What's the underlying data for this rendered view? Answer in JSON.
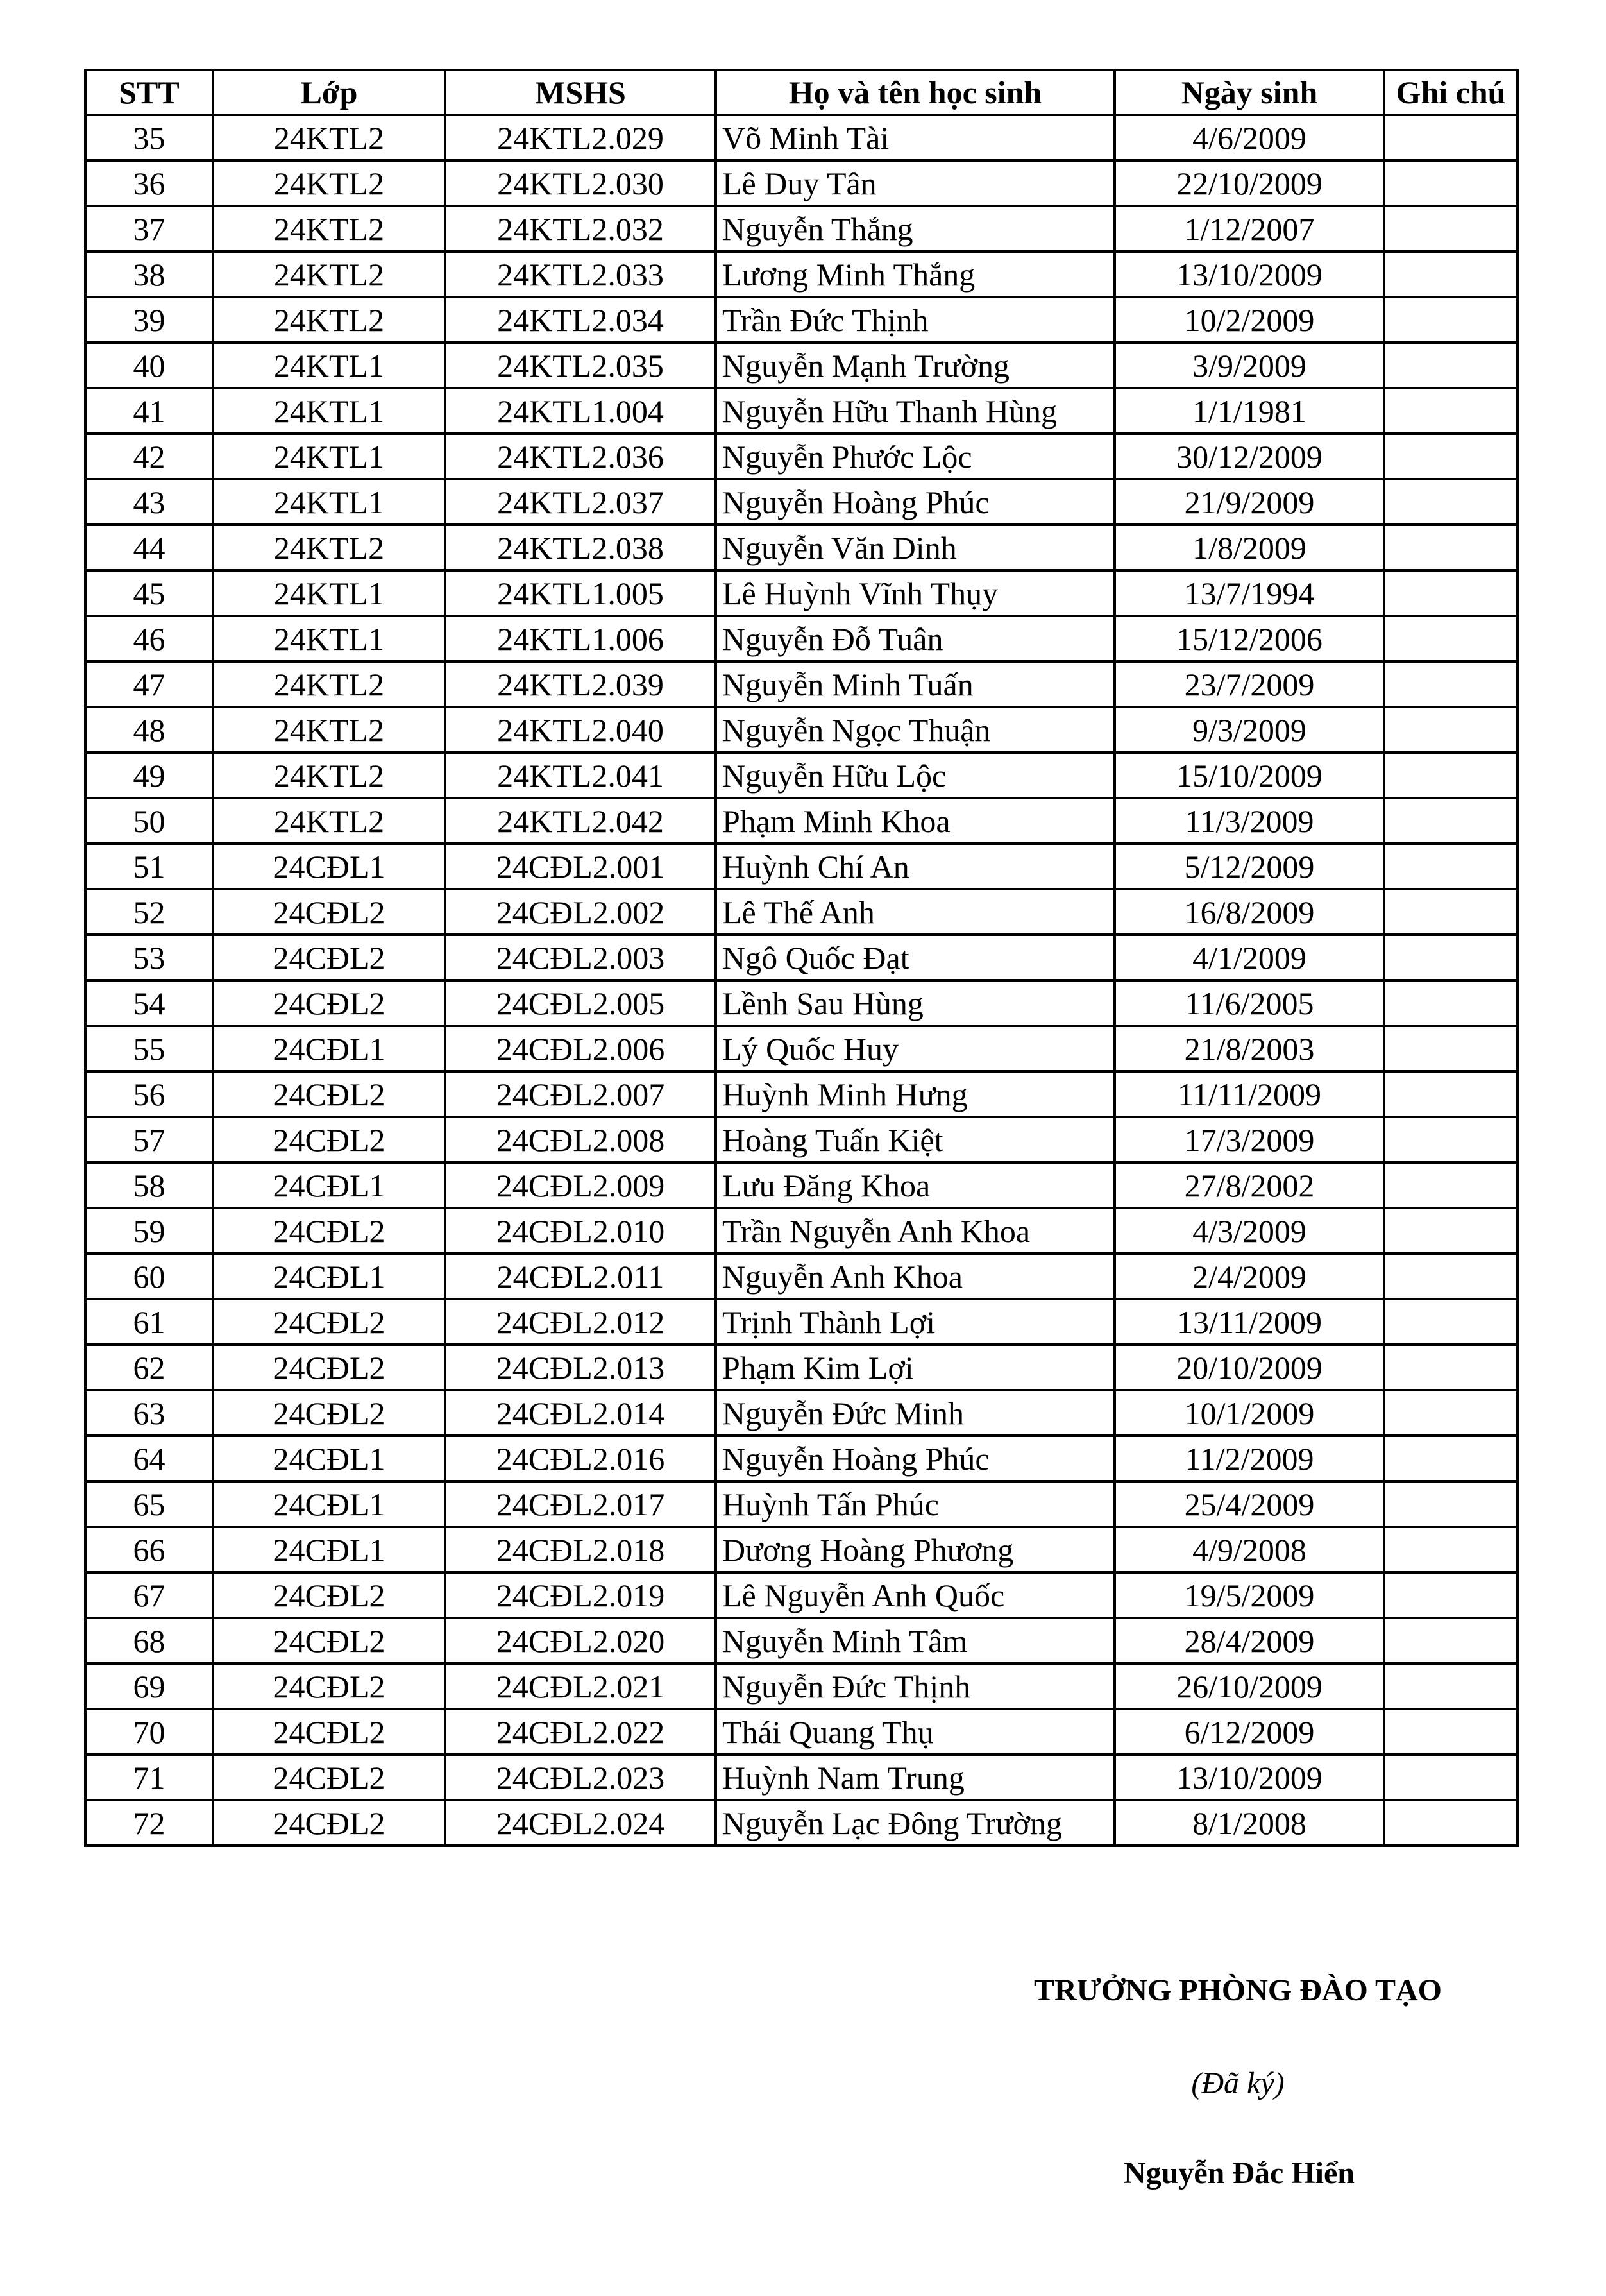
{
  "table": {
    "headers": [
      "STT",
      "Lớp",
      "MSHS",
      "Họ và tên học sinh",
      "Ngày sinh",
      "Ghi chú"
    ],
    "rows": [
      [
        "35",
        "24KTL2",
        "24KTL2.029",
        "Võ Minh Tài",
        "4/6/2009",
        ""
      ],
      [
        "36",
        "24KTL2",
        "24KTL2.030",
        "Lê Duy Tân",
        "22/10/2009",
        ""
      ],
      [
        "37",
        "24KTL2",
        "24KTL2.032",
        "Nguyễn Thắng",
        "1/12/2007",
        ""
      ],
      [
        "38",
        "24KTL2",
        "24KTL2.033",
        "Lương Minh Thắng",
        "13/10/2009",
        ""
      ],
      [
        "39",
        "24KTL2",
        "24KTL2.034",
        "Trần Đức Thịnh",
        "10/2/2009",
        ""
      ],
      [
        "40",
        "24KTL1",
        "24KTL2.035",
        "Nguyễn Mạnh Trường",
        "3/9/2009",
        ""
      ],
      [
        "41",
        "24KTL1",
        "24KTL1.004",
        "Nguyễn Hữu Thanh Hùng",
        "1/1/1981",
        ""
      ],
      [
        "42",
        "24KTL1",
        "24KTL2.036",
        "Nguyễn Phước Lộc",
        "30/12/2009",
        ""
      ],
      [
        "43",
        "24KTL1",
        "24KTL2.037",
        "Nguyễn Hoàng Phúc",
        "21/9/2009",
        ""
      ],
      [
        "44",
        "24KTL2",
        "24KTL2.038",
        "Nguyễn Văn Dinh",
        "1/8/2009",
        ""
      ],
      [
        "45",
        "24KTL1",
        "24KTL1.005",
        "Lê Huỳnh Vĩnh Thụy",
        "13/7/1994",
        ""
      ],
      [
        "46",
        "24KTL1",
        "24KTL1.006",
        "Nguyễn Đỗ Tuân",
        "15/12/2006",
        ""
      ],
      [
        "47",
        "24KTL2",
        "24KTL2.039",
        "Nguyễn Minh Tuấn",
        "23/7/2009",
        ""
      ],
      [
        "48",
        "24KTL2",
        "24KTL2.040",
        "Nguyễn Ngọc Thuận",
        "9/3/2009",
        ""
      ],
      [
        "49",
        "24KTL2",
        "24KTL2.041",
        "Nguyễn Hữu Lộc",
        "15/10/2009",
        ""
      ],
      [
        "50",
        "24KTL2",
        "24KTL2.042",
        "Phạm Minh Khoa",
        "11/3/2009",
        ""
      ],
      [
        "51",
        "24CĐL1",
        "24CĐL2.001",
        "Huỳnh Chí An",
        "5/12/2009",
        ""
      ],
      [
        "52",
        "24CĐL2",
        "24CĐL2.002",
        "Lê Thế Anh",
        "16/8/2009",
        ""
      ],
      [
        "53",
        "24CĐL2",
        "24CĐL2.003",
        "Ngô Quốc Đạt",
        "4/1/2009",
        ""
      ],
      [
        "54",
        "24CĐL2",
        "24CĐL2.005",
        "Lềnh Sau Hùng",
        "11/6/2005",
        ""
      ],
      [
        "55",
        "24CĐL1",
        "24CĐL2.006",
        "Lý Quốc Huy",
        "21/8/2003",
        ""
      ],
      [
        "56",
        "24CĐL2",
        "24CĐL2.007",
        "Huỳnh Minh Hưng",
        "11/11/2009",
        ""
      ],
      [
        "57",
        "24CĐL2",
        "24CĐL2.008",
        "Hoàng Tuấn Kiệt",
        "17/3/2009",
        ""
      ],
      [
        "58",
        "24CĐL1",
        "24CĐL2.009",
        "Lưu Đăng Khoa",
        "27/8/2002",
        ""
      ],
      [
        "59",
        "24CĐL2",
        "24CĐL2.010",
        "Trần Nguyễn Anh Khoa",
        "4/3/2009",
        ""
      ],
      [
        "60",
        "24CĐL1",
        "24CĐL2.011",
        "Nguyễn Anh Khoa",
        "2/4/2009",
        ""
      ],
      [
        "61",
        "24CĐL2",
        "24CĐL2.012",
        "Trịnh Thành Lợi",
        "13/11/2009",
        ""
      ],
      [
        "62",
        "24CĐL2",
        "24CĐL2.013",
        "Phạm Kim Lợi",
        "20/10/2009",
        ""
      ],
      [
        "63",
        "24CĐL2",
        "24CĐL2.014",
        "Nguyễn Đức Minh",
        "10/1/2009",
        ""
      ],
      [
        "64",
        "24CĐL1",
        "24CĐL2.016",
        "Nguyễn Hoàng Phúc",
        "11/2/2009",
        ""
      ],
      [
        "65",
        "24CĐL1",
        "24CĐL2.017",
        "Huỳnh Tấn Phúc",
        "25/4/2009",
        ""
      ],
      [
        "66",
        "24CĐL1",
        "24CĐL2.018",
        "Dương Hoàng Phương",
        "4/9/2008",
        ""
      ],
      [
        "67",
        "24CĐL2",
        "24CĐL2.019",
        "Lê Nguyễn Anh Quốc",
        "19/5/2009",
        ""
      ],
      [
        "68",
        "24CĐL2",
        "24CĐL2.020",
        "Nguyễn Minh Tâm",
        "28/4/2009",
        ""
      ],
      [
        "69",
        "24CĐL2",
        "24CĐL2.021",
        "Nguyễn Đức Thịnh",
        "26/10/2009",
        ""
      ],
      [
        "70",
        "24CĐL2",
        "24CĐL2.022",
        "Thái Quang Thụ",
        "6/12/2009",
        ""
      ],
      [
        "71",
        "24CĐL2",
        "24CĐL2.023",
        "Huỳnh Nam Trung",
        "13/10/2009",
        ""
      ],
      [
        "72",
        "24CĐL2",
        "24CĐL2.024",
        "Nguyễn Lạc Đông Trường",
        "8/1/2008",
        ""
      ]
    ]
  },
  "signature": {
    "title": "TRƯỞNG PHÒNG  ĐÀO TẠO",
    "signed_note": "(Đã ký)",
    "name": "Nguyễn Đắc Hiển"
  }
}
